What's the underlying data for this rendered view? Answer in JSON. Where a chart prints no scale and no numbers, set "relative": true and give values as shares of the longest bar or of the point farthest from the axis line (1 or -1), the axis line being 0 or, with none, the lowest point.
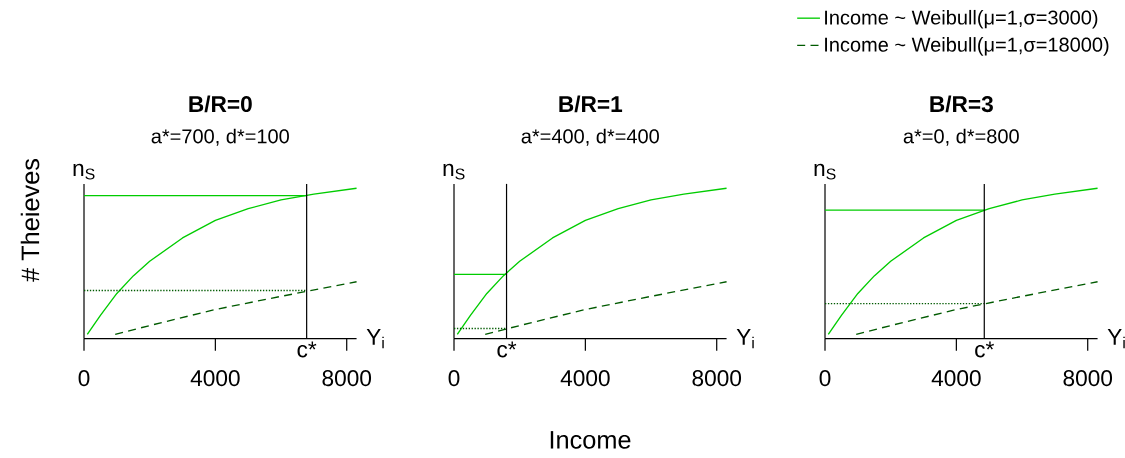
{
  "chart_data": [
    {
      "type": "line",
      "title": "B/R=0",
      "subtitle": "a*=700, d*=100",
      "xlabel": "Y$_{i}$",
      "ylabel": "n$_{S}$",
      "relative": true,
      "xlim": [
        0,
        8300
      ],
      "xticks": [
        0,
        4000,
        8000
      ],
      "series": [
        {
          "color": "#00cc00",
          "line_style": "solid",
          "x": [
            100,
            500,
            1000,
            1500,
            2000,
            3000,
            4000,
            5000,
            6000,
            7000,
            8300
          ],
          "values": [
            0,
            0.13,
            0.28,
            0.4,
            0.5,
            0.66,
            0.78,
            0.86,
            0.92,
            0.96,
            1
          ]
        },
        {
          "color": "#005a00",
          "line_style": "dashed",
          "x": [
            950,
            2000,
            4000,
            6000,
            8300
          ],
          "values": [
            0,
            0.06,
            0.17,
            0.26,
            0.36
          ]
        },
        {
          "color": "#00cc00",
          "line_style": "solid",
          "x": [
            0,
            6780
          ],
          "values": [
            0.95,
            0.95
          ]
        },
        {
          "color": "#005a00",
          "line_style": "dotted",
          "x": [
            0,
            6780
          ],
          "values": [
            0.3,
            0.3
          ]
        }
      ],
      "ref_lines": [
        {
          "axis": "x",
          "value": 6780,
          "label": "c*",
          "color": "#000000"
        }
      ],
      "annotations": [
        "# Theieves"
      ]
    },
    {
      "type": "line",
      "title": "B/R=1",
      "subtitle": "a*=400, d*=400",
      "xlabel": "Y$_{i}$",
      "ylabel": "n$_{S}$",
      "relative": true,
      "xlim": [
        0,
        8300
      ],
      "xticks": [
        0,
        4000,
        8000
      ],
      "series": [
        {
          "color": "#00cc00",
          "line_style": "solid",
          "x": [
            100,
            500,
            1000,
            1500,
            2000,
            3000,
            4000,
            5000,
            6000,
            7000,
            8300
          ],
          "values": [
            0,
            0.13,
            0.28,
            0.4,
            0.5,
            0.66,
            0.78,
            0.86,
            0.92,
            0.96,
            1
          ]
        },
        {
          "color": "#005a00",
          "line_style": "dashed",
          "x": [
            950,
            2000,
            4000,
            6000,
            8300
          ],
          "values": [
            0,
            0.06,
            0.17,
            0.26,
            0.36
          ]
        },
        {
          "color": "#00cc00",
          "line_style": "solid",
          "x": [
            0,
            1600
          ],
          "values": [
            0.41,
            0.41
          ]
        },
        {
          "color": "#005a00",
          "line_style": "dotted",
          "x": [
            0,
            1600
          ],
          "values": [
            0.04,
            0.04
          ]
        }
      ],
      "ref_lines": [
        {
          "axis": "x",
          "value": 1600,
          "label": "c*",
          "color": "#000000"
        }
      ],
      "annotations": [
        "Income"
      ]
    },
    {
      "type": "line",
      "title": "B/R=3",
      "subtitle": "a*=0, d*=800",
      "xlabel": "Y$_{i}$",
      "ylabel": "n$_{S}$",
      "relative": true,
      "xlim": [
        0,
        8300
      ],
      "xticks": [
        0,
        4000,
        8000
      ],
      "legend": "top right",
      "series": [
        {
          "name": "Income ~ Weibull(μ=1,σ=3000)",
          "color": "#00cc00",
          "line_style": "solid",
          "x": [
            100,
            500,
            1000,
            1500,
            2000,
            3000,
            4000,
            5000,
            6000,
            7000,
            8300
          ],
          "values": [
            0,
            0.13,
            0.28,
            0.4,
            0.5,
            0.66,
            0.78,
            0.86,
            0.92,
            0.96,
            1
          ]
        },
        {
          "name": "Income ~ Weibull(μ=1,σ=18000)",
          "color": "#005a00",
          "line_style": "dashed",
          "x": [
            950,
            2000,
            4000,
            6000,
            8300
          ],
          "values": [
            0,
            0.06,
            0.17,
            0.26,
            0.36
          ]
        },
        {
          "color": "#00cc00",
          "line_style": "solid",
          "x": [
            0,
            4850
          ],
          "values": [
            0.85,
            0.85
          ]
        },
        {
          "color": "#005a00",
          "line_style": "dotted",
          "x": [
            0,
            4850
          ],
          "values": [
            0.21,
            0.21
          ]
        }
      ],
      "ref_lines": [
        {
          "axis": "x",
          "value": 4850,
          "label": "c*",
          "color": "#000000"
        }
      ]
    }
  ]
}
